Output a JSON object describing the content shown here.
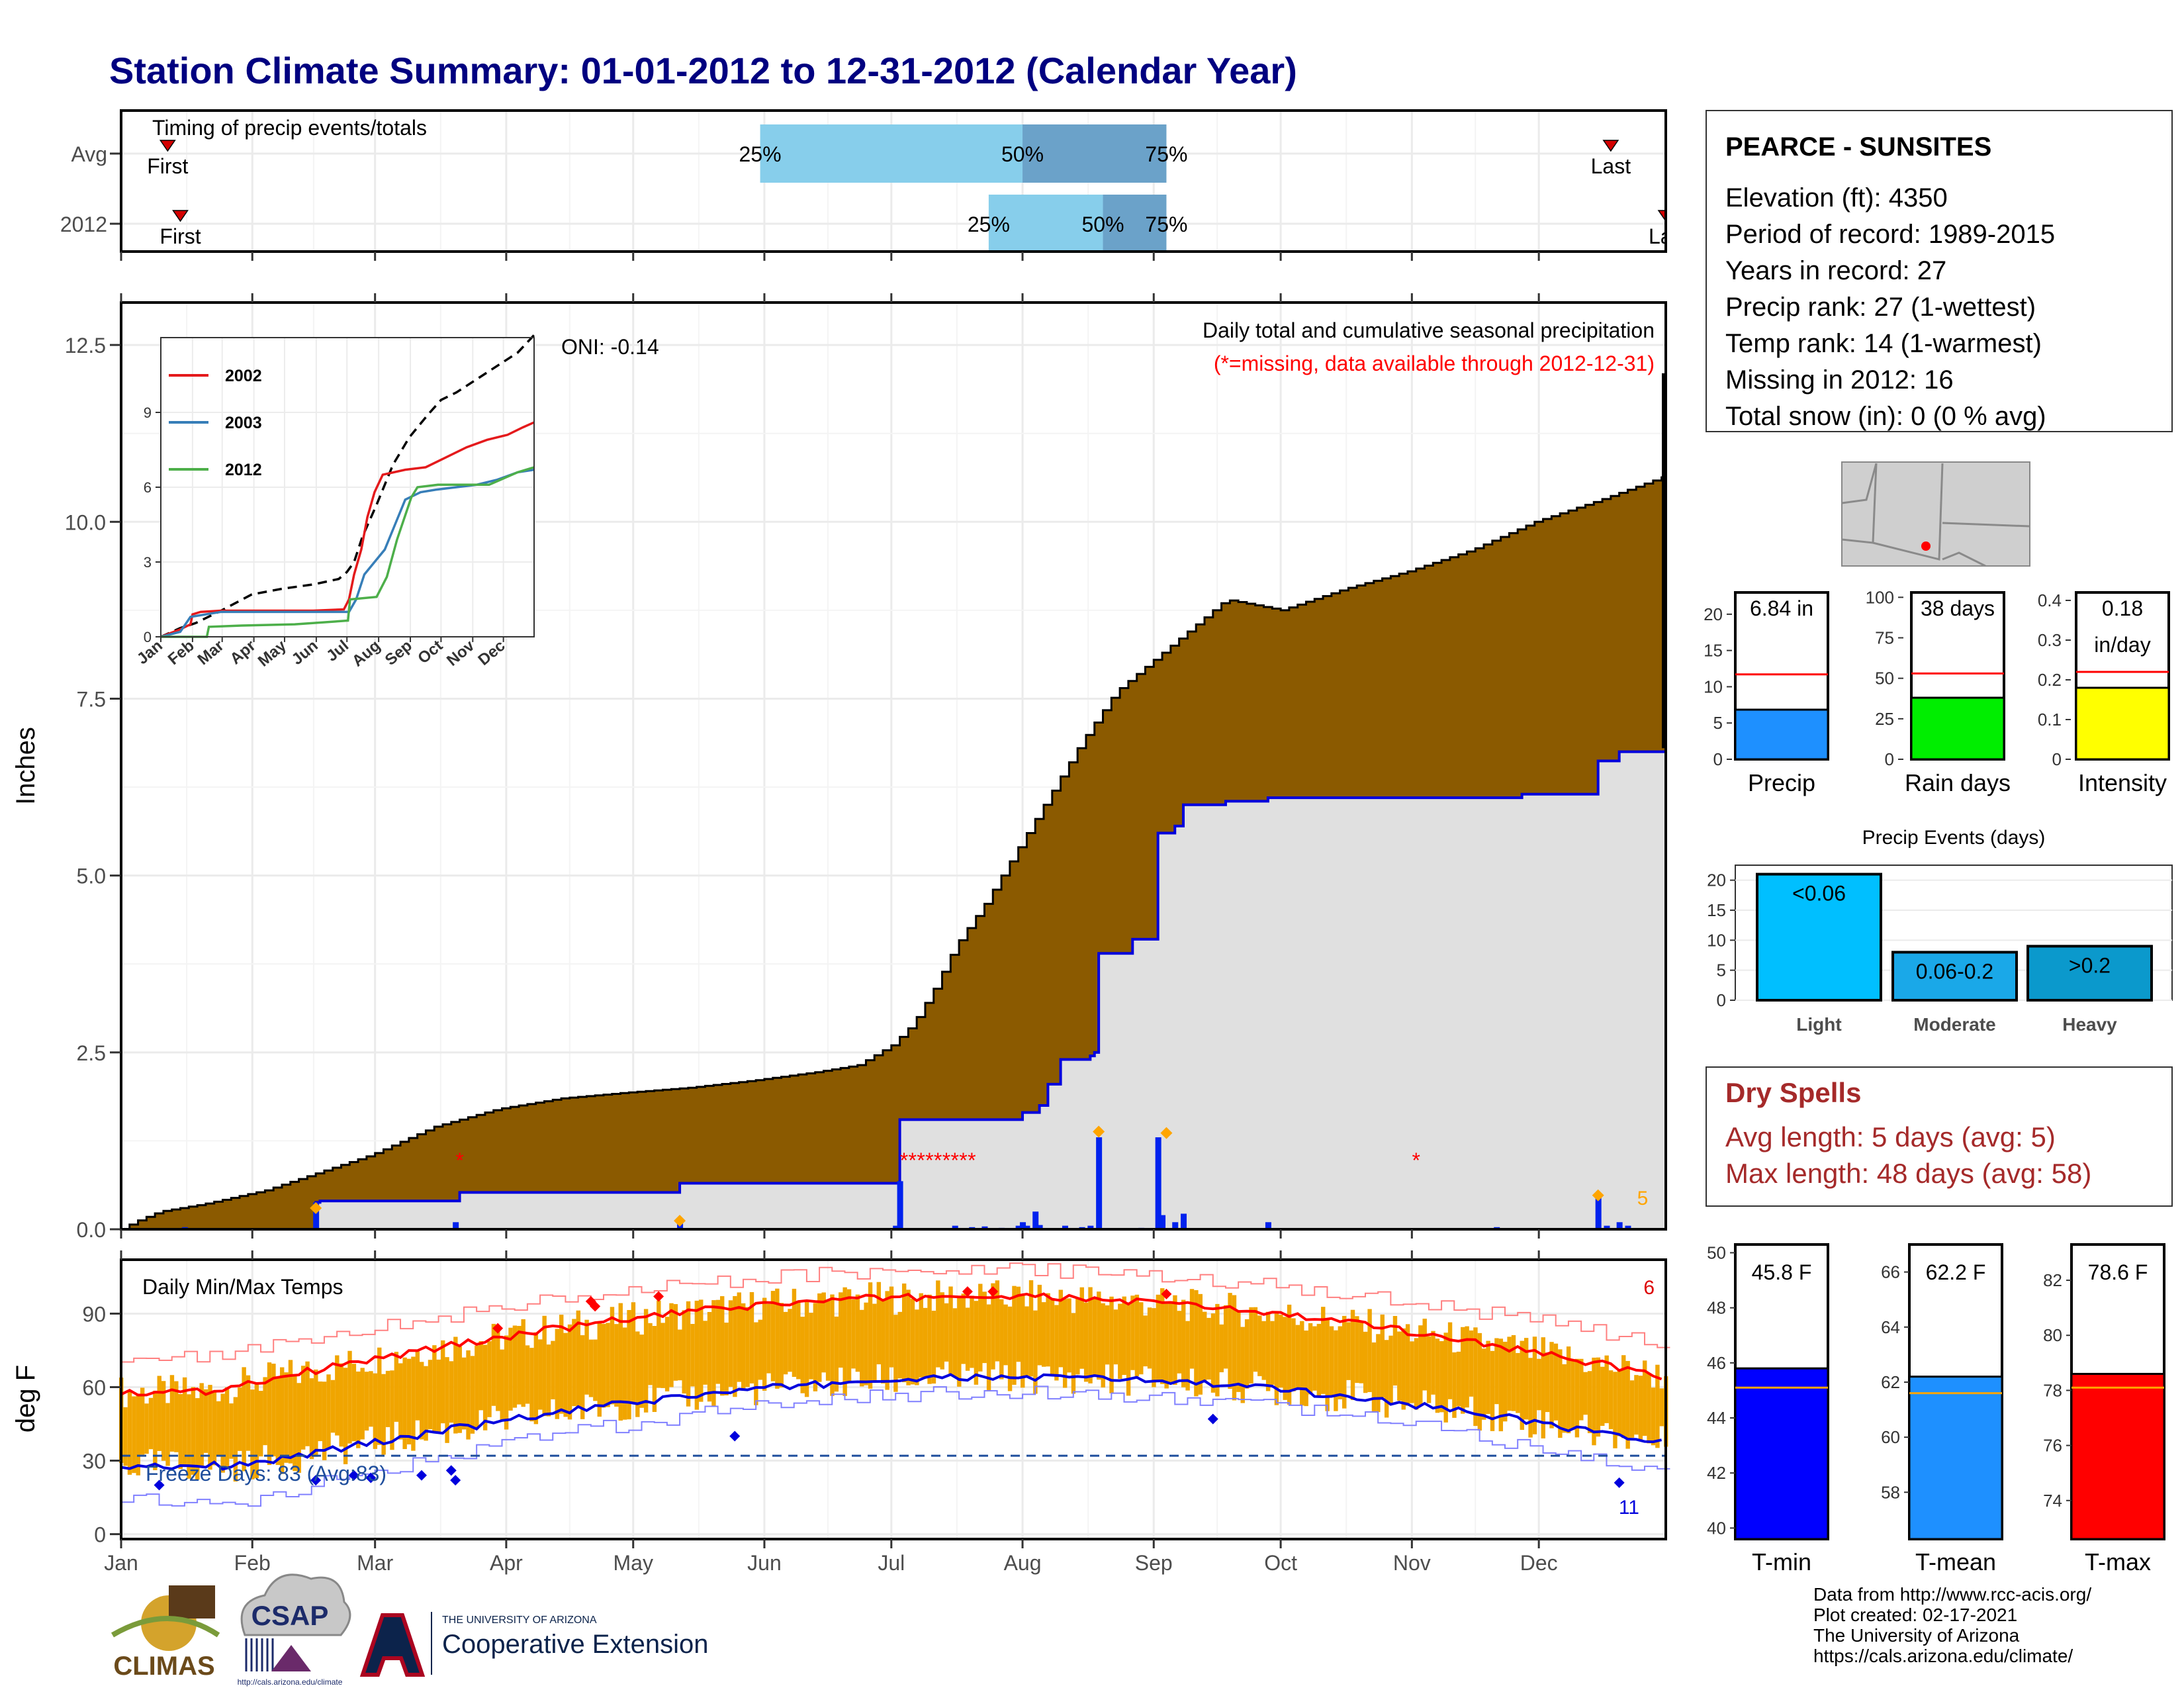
{
  "title": "Station Climate Summary: 01-01-2012 to 12-31-2012 (Calendar Year)",
  "chart_data": [
    {
      "id": "timing",
      "type": "bar",
      "title": "Timing of precip events/totals",
      "rows": [
        {
          "label": "Avg",
          "first_doy": 12,
          "last_doy": 353,
          "p25": 152,
          "p50": 214,
          "p75": 248
        },
        {
          "label": "2012",
          "first_doy": 15,
          "last_doy": 366,
          "p25": 206,
          "p50": 233,
          "p75": 248
        }
      ],
      "marker_labels": {
        "first": "First",
        "last": "Last",
        "last_clipped": "La"
      },
      "percent_labels": [
        "25%",
        "50%",
        "75%"
      ],
      "colors": {
        "p25_50": "#87ceeb",
        "p50_75": "#6ba2c9",
        "marker": "#d40000"
      }
    },
    {
      "id": "precip",
      "type": "area",
      "title": "Daily total and cumulative seasonal precipitation",
      "subtitle": "(*=missing, data available through 2012-12-31)",
      "oni": "ONI: -0.14",
      "ylabel": "Inches",
      "ylim": [
        0,
        13.1
      ],
      "yticks": [
        0,
        2.5,
        5,
        7.5,
        10,
        12.5
      ],
      "ytick_labels": [
        "0.0",
        "2.5",
        "5.0",
        "7.5",
        "10.0",
        "12.5"
      ],
      "avg_cumulative": [
        [
          1,
          0
        ],
        [
          4,
          0.1
        ],
        [
          10,
          0.25
        ],
        [
          20,
          0.35
        ],
        [
          35,
          0.55
        ],
        [
          45,
          0.75
        ],
        [
          60,
          1.05
        ],
        [
          75,
          1.45
        ],
        [
          90,
          1.7
        ],
        [
          105,
          1.85
        ],
        [
          120,
          1.93
        ],
        [
          135,
          2.0
        ],
        [
          150,
          2.1
        ],
        [
          165,
          2.22
        ],
        [
          175,
          2.32
        ],
        [
          183,
          2.6
        ],
        [
          188,
          2.9
        ],
        [
          193,
          3.4
        ],
        [
          198,
          4.0
        ],
        [
          205,
          4.6
        ],
        [
          212,
          5.3
        ],
        [
          220,
          6.1
        ],
        [
          228,
          6.9
        ],
        [
          236,
          7.6
        ],
        [
          244,
          8.0
        ],
        [
          252,
          8.4
        ],
        [
          262,
          8.9
        ],
        [
          275,
          8.75
        ],
        [
          290,
          9.05
        ],
        [
          305,
          9.3
        ],
        [
          320,
          9.6
        ],
        [
          335,
          10.0
        ],
        [
          350,
          10.3
        ],
        [
          366,
          10.65
        ]
      ],
      "cum_2012": [
        [
          1,
          0
        ],
        [
          46,
          0
        ],
        [
          47,
          0.38
        ],
        [
          48,
          0.4
        ],
        [
          80,
          0.4
        ],
        [
          81,
          0.52
        ],
        [
          132,
          0.52
        ],
        [
          133,
          0.65
        ],
        [
          184,
          0.65
        ],
        [
          185,
          1.55
        ],
        [
          212,
          1.55
        ],
        [
          214,
          1.65
        ],
        [
          218,
          1.75
        ],
        [
          220,
          2.05
        ],
        [
          223,
          2.4
        ],
        [
          230,
          2.45
        ],
        [
          231,
          2.5
        ],
        [
          232,
          2.5
        ],
        [
          232,
          3.9
        ],
        [
          240,
          4.0
        ],
        [
          240,
          4.1
        ],
        [
          246,
          4.1
        ],
        [
          246,
          5.6
        ],
        [
          250,
          5.7
        ],
        [
          252,
          6.0
        ],
        [
          262,
          6.05
        ],
        [
          272,
          6.1
        ],
        [
          322,
          6.1
        ],
        [
          332,
          6.15
        ],
        [
          349,
          6.15
        ],
        [
          350,
          6.62
        ],
        [
          355,
          6.75
        ],
        [
          366,
          6.8
        ]
      ],
      "daily_bars": [
        [
          16,
          0.03
        ],
        [
          47,
          0.38
        ],
        [
          80,
          0.1
        ],
        [
          133,
          0.08
        ],
        [
          184,
          0.05
        ],
        [
          185,
          0.68
        ],
        [
          198,
          0.05
        ],
        [
          202,
          0.03
        ],
        [
          205,
          0.04
        ],
        [
          209,
          0.02
        ],
        [
          213,
          0.05
        ],
        [
          215,
          0.05
        ],
        [
          217,
          0.25
        ],
        [
          214,
          0.1
        ],
        [
          218,
          0.06
        ],
        [
          224,
          0.05
        ],
        [
          228,
          0.03
        ],
        [
          230,
          0.05
        ],
        [
          232,
          1.3
        ],
        [
          242,
          0.02
        ],
        [
          246,
          1.3
        ],
        [
          247,
          0.2
        ],
        [
          250,
          0.1
        ],
        [
          252,
          0.22
        ],
        [
          272,
          0.1
        ],
        [
          326,
          0.03
        ],
        [
          350,
          0.47
        ],
        [
          352,
          0.05
        ],
        [
          355,
          0.1
        ],
        [
          357,
          0.05
        ]
      ],
      "orange_diamonds": [
        [
          47,
          0.3
        ],
        [
          133,
          0.12
        ],
        [
          232,
          1.38
        ],
        [
          248,
          1.36
        ],
        [
          350,
          0.48
        ]
      ],
      "missing_marks": [
        [
          81,
          1.0
        ],
        [
          186,
          1.0
        ],
        [
          188,
          1.0
        ],
        [
          190,
          1.0
        ],
        [
          192,
          1.0
        ],
        [
          194,
          1.0
        ],
        [
          196,
          1.0
        ],
        [
          198,
          1.0
        ],
        [
          200,
          1.0
        ],
        [
          202,
          1.0
        ],
        [
          307,
          1.0
        ]
      ],
      "count_label": "5",
      "colors": {
        "avg_fill": "#8b5a00",
        "cum_fill": "#e0e0e0",
        "cum_line": "#0000dd",
        "bars": "#0022ee",
        "diamond": "#ffa500",
        "missing": "#ff0000"
      }
    },
    {
      "id": "inset",
      "type": "line",
      "ylim": [
        0,
        12
      ],
      "yticks": [
        0,
        3,
        6,
        9
      ],
      "month_labels": [
        "Jan",
        "Feb",
        "Mar",
        "Apr",
        "May",
        "Jun",
        "Jul",
        "Aug",
        "Sep",
        "Oct",
        "Nov",
        "Dec"
      ],
      "series": [
        {
          "name": "2002",
          "color": "#e41a1c",
          "points": [
            [
              1,
              0
            ],
            [
              20,
              0.3
            ],
            [
              30,
              0.5
            ],
            [
              32,
              0.9
            ],
            [
              40,
              1.0
            ],
            [
              60,
              1.05
            ],
            [
              90,
              1.05
            ],
            [
              120,
              1.05
            ],
            [
              150,
              1.05
            ],
            [
              180,
              1.1
            ],
            [
              185,
              1.5
            ],
            [
              190,
              2.5
            ],
            [
              197,
              3.5
            ],
            [
              203,
              4.8
            ],
            [
              210,
              5.8
            ],
            [
              218,
              6.5
            ],
            [
              240,
              6.7
            ],
            [
              260,
              6.8
            ],
            [
              280,
              7.2
            ],
            [
              300,
              7.6
            ],
            [
              320,
              7.9
            ],
            [
              340,
              8.1
            ],
            [
              355,
              8.4
            ],
            [
              366,
              8.6
            ]
          ]
        },
        {
          "name": "2003",
          "color": "#377eb8",
          "points": [
            [
              1,
              0
            ],
            [
              20,
              0.2
            ],
            [
              30,
              0.8
            ],
            [
              60,
              1.0
            ],
            [
              90,
              1.0
            ],
            [
              150,
              1.0
            ],
            [
              185,
              1.0
            ],
            [
              192,
              1.5
            ],
            [
              200,
              2.5
            ],
            [
              210,
              3.0
            ],
            [
              220,
              3.5
            ],
            [
              230,
              4.5
            ],
            [
              240,
              5.5
            ],
            [
              255,
              5.8
            ],
            [
              270,
              5.9
            ],
            [
              290,
              6.0
            ],
            [
              310,
              6.1
            ],
            [
              330,
              6.3
            ],
            [
              350,
              6.6
            ],
            [
              366,
              6.7
            ]
          ]
        },
        {
          "name": "2012",
          "color": "#4daf4a",
          "points": [
            [
              1,
              0
            ],
            [
              46,
              0
            ],
            [
              48,
              0.4
            ],
            [
              80,
              0.45
            ],
            [
              132,
              0.5
            ],
            [
              184,
              0.65
            ],
            [
              186,
              1.5
            ],
            [
              212,
              1.6
            ],
            [
              222,
              2.4
            ],
            [
              232,
              3.9
            ],
            [
              246,
              5.6
            ],
            [
              252,
              6.0
            ],
            [
              272,
              6.1
            ],
            [
              322,
              6.1
            ],
            [
              350,
              6.6
            ],
            [
              366,
              6.8
            ]
          ]
        }
      ],
      "avg_points": [
        [
          1,
          0
        ],
        [
          20,
          0.35
        ],
        [
          35,
          0.55
        ],
        [
          60,
          1.05
        ],
        [
          90,
          1.7
        ],
        [
          120,
          1.93
        ],
        [
          150,
          2.1
        ],
        [
          175,
          2.32
        ],
        [
          183,
          2.6
        ],
        [
          190,
          3.0
        ],
        [
          198,
          4.0
        ],
        [
          212,
          5.3
        ],
        [
          228,
          6.9
        ],
        [
          244,
          8.0
        ],
        [
          262,
          8.9
        ],
        [
          275,
          9.5
        ],
        [
          290,
          9.8
        ],
        [
          305,
          10.2
        ],
        [
          320,
          10.6
        ],
        [
          335,
          11.0
        ],
        [
          350,
          11.4
        ],
        [
          366,
          12.1
        ]
      ]
    },
    {
      "id": "temps",
      "type": "bar",
      "title": "Daily Min/Max Temps",
      "ylabel": "deg F",
      "ylim": [
        -2,
        112
      ],
      "yticks": [
        0,
        30,
        60,
        90
      ],
      "freeze_label": "Freeze Days: 83 (Avg:83)",
      "freeze_line": 32,
      "count_high": "6",
      "count_low": "11",
      "colors": {
        "bars": "#f0a500",
        "avg_max": "#ff0000",
        "avg_min": "#0000dd",
        "rec_max": "#ff8080",
        "rec_min": "#8080ff"
      }
    },
    {
      "id": "station",
      "station_name": "PEARCE - SUNSITES",
      "lines": [
        "Elevation (ft): 4350",
        "Period of record: 1989-2015",
        "Years in record: 27",
        "Precip rank: 27 (1-wettest)",
        "Temp rank: 14 (1-warmest)",
        "Missing in 2012: 16",
        "Total snow (in): 0 (0 % avg)"
      ]
    },
    {
      "id": "small_bars",
      "type": "bar",
      "charts": [
        {
          "label": "Precip",
          "value": 6.84,
          "avg": 11.7,
          "ylim": [
            0,
            23
          ],
          "yticks": [
            0,
            5,
            10,
            15,
            20
          ],
          "value_label": "6.84 in",
          "color": "#1e90ff"
        },
        {
          "label": "Rain days",
          "value": 38,
          "avg": 53,
          "ylim": [
            0,
            103
          ],
          "yticks": [
            0,
            25,
            50,
            75,
            100
          ],
          "value_label": "38 days",
          "color": "#00ee00"
        },
        {
          "label": "Intensity",
          "value": 0.18,
          "avg": 0.22,
          "ylim": [
            0,
            0.42
          ],
          "yticks": [
            0.0,
            0.1,
            0.2,
            0.3,
            0.4
          ],
          "value_label": "0.18\nin/day",
          "color": "#ffff00"
        }
      ]
    },
    {
      "id": "events",
      "type": "bar",
      "title": "Precip Events (days)",
      "categories": [
        "Light",
        "Moderate",
        "Heavy"
      ],
      "values": [
        21,
        8,
        9
      ],
      "bar_labels": [
        "<0.06",
        "0.06-0.2",
        ">0.2"
      ],
      "ylim": [
        0,
        22.5
      ],
      "yticks": [
        0,
        5,
        10,
        15,
        20
      ],
      "colors": [
        "#00bfff",
        "#1aa8e8",
        "#0b99cc"
      ]
    },
    {
      "id": "dry_spells",
      "title": "Dry Spells",
      "lines": [
        "Avg length: 5 days (avg: 5)",
        "Max length: 48 days (avg: 58)"
      ]
    },
    {
      "id": "temp_bars",
      "type": "bar",
      "charts": [
        {
          "label": "T-min",
          "value": 45.8,
          "avg": 45.1,
          "ylim": [
            39.6,
            50.3
          ],
          "yticks": [
            40,
            42,
            44,
            46,
            48,
            50
          ],
          "value_label": "45.8 F",
          "color": "#0000ff"
        },
        {
          "label": "T-mean",
          "value": 62.2,
          "avg": 61.6,
          "ylim": [
            56.3,
            67
          ],
          "yticks": [
            58,
            60,
            62,
            64,
            66
          ],
          "value_label": "62.2 F",
          "color": "#1e90ff"
        },
        {
          "label": "T-max",
          "value": 78.6,
          "avg": 78.1,
          "ylim": [
            72.6,
            83.3
          ],
          "yticks": [
            74,
            76,
            78,
            80,
            82
          ],
          "value_label": "78.6 F",
          "color": "#ff0000"
        }
      ]
    }
  ],
  "month_labels": [
    "Jan",
    "Feb",
    "Mar",
    "Apr",
    "May",
    "Jun",
    "Jul",
    "Aug",
    "Sep",
    "Oct",
    "Nov",
    "Dec"
  ],
  "footer": {
    "credits": [
      "Data from http://www.rcc-acis.org/",
      "Plot created: 02-17-2021",
      "The University of Arizona",
      "https://cals.arizona.edu/climate/"
    ],
    "logo_climas": "CLIMAS",
    "logo_csap": "CSAP",
    "logo_csap_url": "http://cals.arizona.edu/climate",
    "logo_ua_line1": "THE UNIVERSITY OF ARIZONA",
    "logo_ua_line2": "Cooperative Extension"
  }
}
